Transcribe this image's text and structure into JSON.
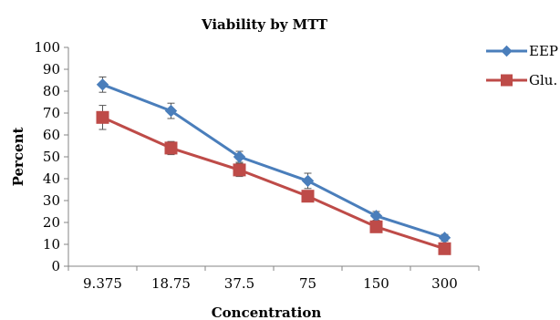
{
  "chart_data": {
    "type": "line",
    "title": "Viability by MTT",
    "xlabel": "Concentration",
    "ylabel": "Percent",
    "categories": [
      "9.375",
      "18.75",
      "37.5",
      "75",
      "150",
      "300"
    ],
    "ylim": [
      0,
      100
    ],
    "yticks": [
      0,
      10,
      20,
      30,
      40,
      50,
      60,
      70,
      80,
      90,
      100
    ],
    "grid": false,
    "legend_position": "right",
    "series": [
      {
        "name": "EEP",
        "color": "#4a7ebb",
        "marker": "diamond",
        "values": [
          83,
          71,
          50,
          39,
          23,
          13
        ],
        "error": [
          3.5,
          3.5,
          2.5,
          3.5,
          2,
          1.5
        ]
      },
      {
        "name": "Glu.",
        "color": "#be4b48",
        "marker": "square",
        "values": [
          68,
          54,
          44,
          32,
          18,
          8
        ],
        "error": [
          5.5,
          3,
          3,
          2,
          2,
          1.5
        ]
      }
    ]
  }
}
